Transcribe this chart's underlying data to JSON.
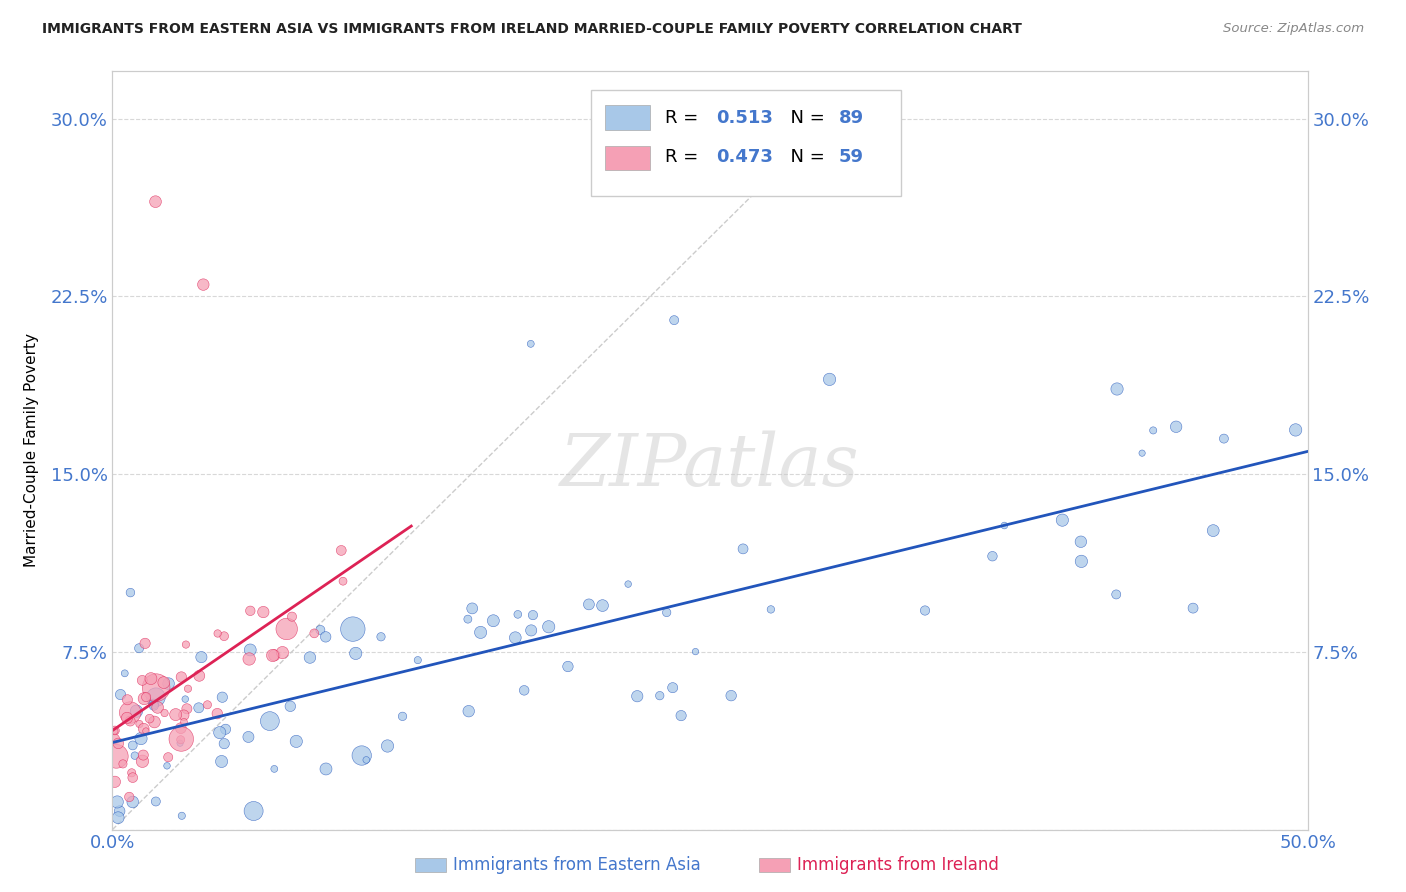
{
  "title": "IMMIGRANTS FROM EASTERN ASIA VS IMMIGRANTS FROM IRELAND MARRIED-COUPLE FAMILY POVERTY CORRELATION CHART",
  "source": "Source: ZipAtlas.com",
  "xlabel_blue": "Immigrants from Eastern Asia",
  "xlabel_pink": "Immigrants from Ireland",
  "ylabel": "Married-Couple Family Poverty",
  "watermark": "ZIPatlas",
  "r_blue": 0.513,
  "n_blue": 89,
  "r_pink": 0.473,
  "n_pink": 59,
  "xlim": [
    0.0,
    0.5
  ],
  "ylim": [
    0.0,
    0.32
  ],
  "blue_color": "#a8c8e8",
  "blue_line_color": "#2255bb",
  "pink_color": "#f5a0b5",
  "pink_line_color": "#dd2255",
  "grid_color": "#d8d8d8",
  "tick_color": "#4477cc",
  "title_color": "#222222",
  "source_color": "#888888"
}
